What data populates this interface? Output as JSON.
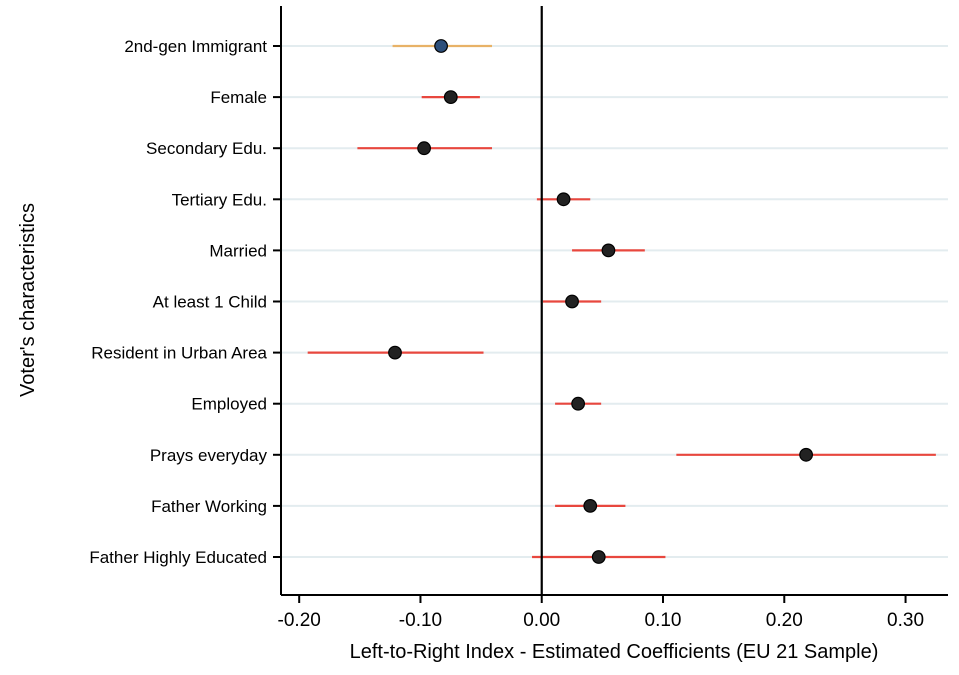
{
  "chart_data": {
    "type": "scatter",
    "subtype": "coefficient-plot",
    "xlabel": "Left-to-Right Index - Estimated Coefficients (EU 21 Sample)",
    "ylabel": "Voter's characteristics",
    "xlim": [
      -0.215,
      0.335
    ],
    "xticks": [
      -0.2,
      -0.1,
      0.0,
      0.1,
      0.2,
      0.3
    ],
    "xtick_labels": [
      "-0.20",
      "-0.10",
      "0.00",
      "0.10",
      "0.20",
      "0.30"
    ],
    "reference_line_x": 0.0,
    "grid": "horizontal",
    "colors": {
      "highlight_point": "#2d4f7a",
      "highlight_ci": "#e8b267",
      "point": "#222222",
      "ci": "#e8473e",
      "grid": "#e3ecef"
    },
    "categories": [
      "2nd-gen Immigrant",
      "Female",
      "Secondary Edu.",
      "Tertiary Edu.",
      "Married",
      "At least 1 Child",
      "Resident in Urban Area",
      "Employed",
      "Prays everyday",
      "Father Working",
      "Father Highly Educated"
    ],
    "estimates": [
      -0.083,
      -0.075,
      -0.097,
      0.018,
      0.055,
      0.025,
      -0.121,
      0.03,
      0.218,
      0.04,
      0.047
    ],
    "ci_low": [
      -0.123,
      -0.099,
      -0.152,
      -0.004,
      0.025,
      0.001,
      -0.193,
      0.011,
      0.111,
      0.011,
      -0.008
    ],
    "ci_high": [
      -0.041,
      -0.051,
      -0.041,
      0.04,
      0.085,
      0.049,
      -0.048,
      0.049,
      0.325,
      0.069,
      0.102
    ],
    "highlighted": [
      true,
      false,
      false,
      false,
      false,
      false,
      false,
      false,
      false,
      false,
      false
    ]
  }
}
